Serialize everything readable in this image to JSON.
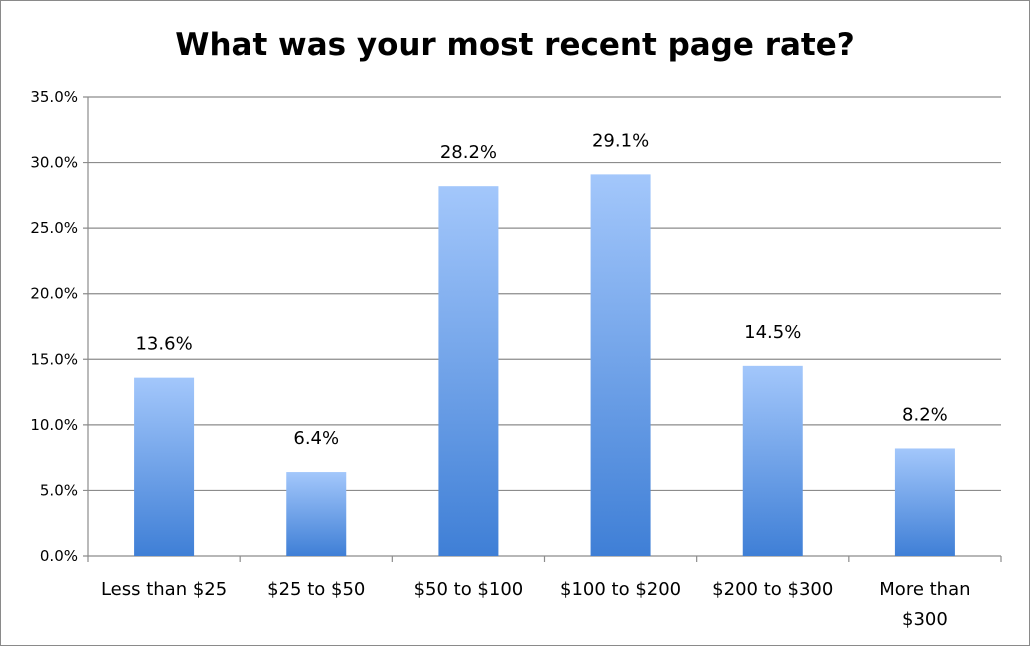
{
  "chart_data": {
    "type": "bar",
    "title": "What was your most recent page rate?",
    "xlabel": "",
    "ylabel": "",
    "categories": [
      "Less than $25",
      "$25 to $50",
      "$50 to $100",
      "$100 to $200",
      "$200 to $300",
      "More than $300"
    ],
    "category_lines": [
      [
        "Less than $25"
      ],
      [
        "$25 to $50"
      ],
      [
        "$50 to $100"
      ],
      [
        "$100 to $200"
      ],
      [
        "$200 to $300"
      ],
      [
        "More than",
        "$300"
      ]
    ],
    "values": [
      13.6,
      6.4,
      28.2,
      29.1,
      14.5,
      8.2
    ],
    "data_labels": [
      "13.6%",
      "6.4%",
      "28.2%",
      "29.1%",
      "14.5%",
      "8.2%"
    ],
    "ylim": [
      0,
      35
    ],
    "yticks": [
      0,
      5,
      10,
      15,
      20,
      25,
      30,
      35
    ],
    "ytick_labels": [
      "0.0%",
      "5.0%",
      "10.0%",
      "15.0%",
      "20.0%",
      "25.0%",
      "30.0%",
      "35.0%"
    ],
    "grid": true,
    "legend": false,
    "colors": {
      "bar_top": "#a3c7fb",
      "bar_bottom": "#3f7fd6",
      "grid": "#8c8c8c",
      "axis": "#8c8c8c"
    }
  }
}
